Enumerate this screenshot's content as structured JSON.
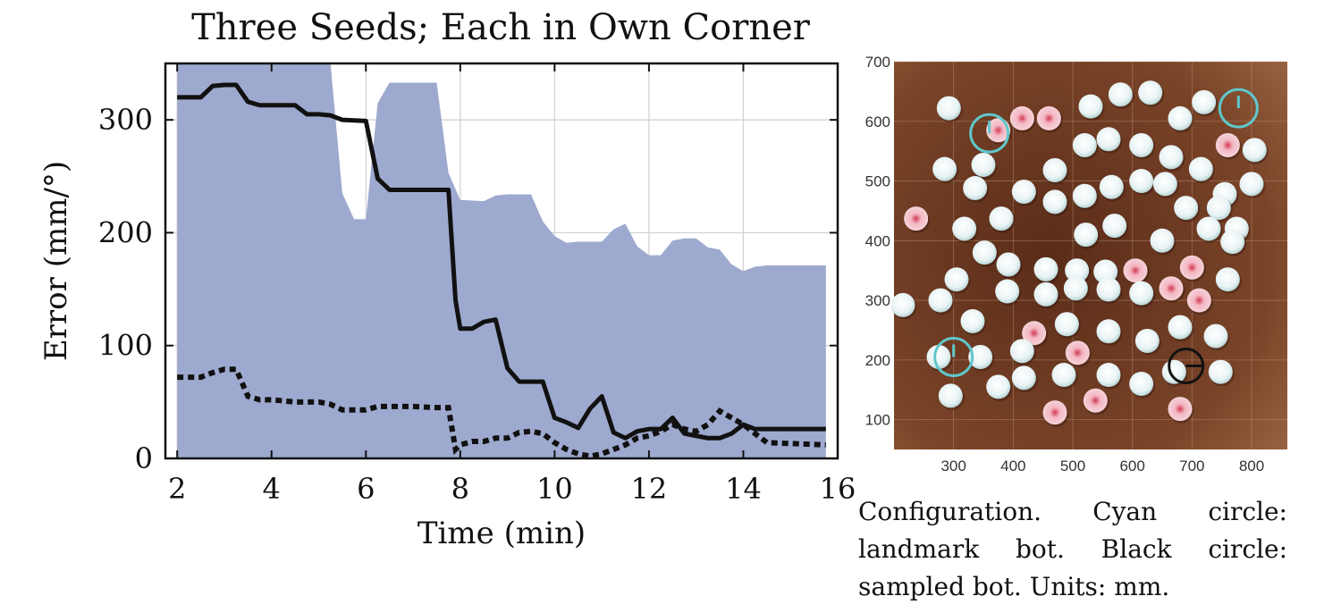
{
  "chart_data": [
    {
      "type": "line",
      "title": "Three Seeds; Each in Own Corner",
      "xlabel": "Time (min)",
      "ylabel": "Error (mm/°)",
      "xlim": [
        1.75,
        16
      ],
      "ylim": [
        0,
        350
      ],
      "xticks": [
        2,
        4,
        6,
        8,
        10,
        12,
        14,
        16
      ],
      "yticks": [
        0,
        100,
        200,
        300
      ],
      "grid": true,
      "colors": {
        "band": "#9ea9cf",
        "solid": "#111111",
        "dotted": "#111111",
        "grid": "#d0d0d0"
      },
      "band": {
        "x": [
          2,
          5.25,
          5.5,
          5.75,
          6,
          6.25,
          6.5,
          7.5,
          7.75,
          8,
          8.5,
          8.75,
          9,
          9.5,
          9.75,
          10,
          10.25,
          10.5,
          11,
          11.25,
          11.5,
          11.75,
          12,
          12.25,
          12.5,
          12.75,
          13,
          13.25,
          13.5,
          13.75,
          14,
          14.25,
          14.5,
          15.75
        ],
        "upper": [
          350,
          350,
          235,
          212,
          212,
          315,
          333,
          333,
          253,
          229,
          228,
          233,
          234,
          234,
          210,
          197,
          191,
          192,
          192,
          203,
          208,
          188,
          180,
          180,
          193,
          195,
          195,
          187,
          185,
          172,
          166,
          170,
          171,
          171
        ],
        "lower": [
          0,
          0,
          0,
          0,
          0,
          0,
          0,
          0,
          0,
          0,
          0,
          0,
          0,
          0,
          0,
          0,
          0,
          0,
          0,
          0,
          0,
          0,
          0,
          0,
          0,
          0,
          0,
          0,
          0,
          0,
          0,
          0,
          0,
          0
        ]
      },
      "series": [
        {
          "style": "solid",
          "x": [
            2,
            2.5,
            2.75,
            3,
            3.25,
            3.5,
            3.75,
            4,
            4.5,
            4.75,
            5,
            5.25,
            5.5,
            6,
            6.25,
            6.5,
            7,
            7.5,
            7.75,
            7.9,
            8,
            8.25,
            8.5,
            8.75,
            9,
            9.25,
            9.5,
            9.75,
            10,
            10.25,
            10.5,
            10.75,
            11,
            11.25,
            11.5,
            11.75,
            12,
            12.25,
            12.5,
            12.75,
            13,
            13.25,
            13.5,
            13.75,
            14,
            14.25,
            15.75
          ],
          "y": [
            320,
            320,
            330,
            331,
            331,
            316,
            313,
            313,
            313,
            305,
            305,
            304,
            300,
            299,
            248,
            238,
            238,
            238,
            238,
            140,
            115,
            115,
            121,
            123,
            80,
            68,
            68,
            68,
            36,
            32,
            27,
            44,
            55,
            23,
            18,
            24,
            26,
            26,
            36,
            22,
            20,
            18,
            18,
            22,
            30,
            26,
            26
          ]
        },
        {
          "style": "dotted",
          "x": [
            2,
            2.5,
            2.75,
            3,
            3.25,
            3.5,
            3.75,
            4,
            4.5,
            4.75,
            5,
            5.25,
            5.5,
            6,
            6.25,
            6.5,
            7,
            7.5,
            7.75,
            7.9,
            8,
            8.25,
            8.5,
            8.75,
            9,
            9.25,
            9.5,
            9.75,
            10,
            10.25,
            10.5,
            10.75,
            11,
            11.25,
            11.5,
            11.75,
            12,
            12.25,
            12.5,
            12.75,
            13,
            13.25,
            13.5,
            13.75,
            14,
            14.25,
            14.5,
            15.75
          ],
          "y": [
            72,
            72,
            76,
            79,
            79,
            55,
            52,
            52,
            50,
            50,
            50,
            48,
            43,
            43,
            46,
            46,
            46,
            45,
            45,
            8,
            12,
            15,
            15,
            18,
            18,
            23,
            24,
            22,
            14,
            8,
            4,
            2,
            4,
            8,
            12,
            18,
            20,
            24,
            30,
            26,
            24,
            30,
            42,
            36,
            30,
            22,
            14,
            12
          ]
        }
      ]
    },
    {
      "type": "scatter",
      "xlim": [
        200,
        860
      ],
      "ylim": [
        50,
        700
      ],
      "xticks": [
        300,
        400,
        500,
        600,
        700,
        800
      ],
      "yticks": [
        100,
        200,
        300,
        400,
        500,
        600,
        700
      ],
      "grid": true,
      "colors": {
        "background": "#6b3a24",
        "bot": "#eef3f4",
        "tinted": "#f4c9d0",
        "landmark": "#5fc8cc",
        "sampled": "#111111"
      },
      "bots": [
        {
          "x": 292,
          "y": 622
        },
        {
          "x": 375,
          "y": 585
        },
        {
          "x": 415,
          "y": 605
        },
        {
          "x": 460,
          "y": 605
        },
        {
          "x": 530,
          "y": 625
        },
        {
          "x": 580,
          "y": 645
        },
        {
          "x": 630,
          "y": 648
        },
        {
          "x": 680,
          "y": 605
        },
        {
          "x": 720,
          "y": 632
        },
        {
          "x": 760,
          "y": 560
        },
        {
          "x": 805,
          "y": 552
        },
        {
          "x": 285,
          "y": 520
        },
        {
          "x": 350,
          "y": 527
        },
        {
          "x": 418,
          "y": 482
        },
        {
          "x": 470,
          "y": 518
        },
        {
          "x": 520,
          "y": 560
        },
        {
          "x": 560,
          "y": 570
        },
        {
          "x": 615,
          "y": 560
        },
        {
          "x": 665,
          "y": 540
        },
        {
          "x": 715,
          "y": 520
        },
        {
          "x": 755,
          "y": 478
        },
        {
          "x": 800,
          "y": 495
        },
        {
          "x": 336,
          "y": 488
        },
        {
          "x": 380,
          "y": 437
        },
        {
          "x": 470,
          "y": 465
        },
        {
          "x": 520,
          "y": 475
        },
        {
          "x": 565,
          "y": 490
        },
        {
          "x": 615,
          "y": 500
        },
        {
          "x": 655,
          "y": 495
        },
        {
          "x": 690,
          "y": 455
        },
        {
          "x": 745,
          "y": 455
        },
        {
          "x": 775,
          "y": 420
        },
        {
          "x": 237,
          "y": 437
        },
        {
          "x": 318,
          "y": 420
        },
        {
          "x": 522,
          "y": 410
        },
        {
          "x": 570,
          "y": 425
        },
        {
          "x": 650,
          "y": 400
        },
        {
          "x": 728,
          "y": 420
        },
        {
          "x": 768,
          "y": 398
        },
        {
          "x": 352,
          "y": 380
        },
        {
          "x": 392,
          "y": 360
        },
        {
          "x": 455,
          "y": 352
        },
        {
          "x": 507,
          "y": 350
        },
        {
          "x": 555,
          "y": 348
        },
        {
          "x": 605,
          "y": 350
        },
        {
          "x": 700,
          "y": 355
        },
        {
          "x": 760,
          "y": 335
        },
        {
          "x": 305,
          "y": 335
        },
        {
          "x": 390,
          "y": 315
        },
        {
          "x": 455,
          "y": 310
        },
        {
          "x": 505,
          "y": 320
        },
        {
          "x": 560,
          "y": 318
        },
        {
          "x": 615,
          "y": 312
        },
        {
          "x": 665,
          "y": 320
        },
        {
          "x": 712,
          "y": 300
        },
        {
          "x": 215,
          "y": 292
        },
        {
          "x": 278,
          "y": 300
        },
        {
          "x": 332,
          "y": 265
        },
        {
          "x": 435,
          "y": 245
        },
        {
          "x": 490,
          "y": 260
        },
        {
          "x": 560,
          "y": 248
        },
        {
          "x": 625,
          "y": 232
        },
        {
          "x": 680,
          "y": 255
        },
        {
          "x": 740,
          "y": 240
        },
        {
          "x": 415,
          "y": 215
        },
        {
          "x": 508,
          "y": 212
        },
        {
          "x": 275,
          "y": 205
        },
        {
          "x": 345,
          "y": 205
        },
        {
          "x": 418,
          "y": 170
        },
        {
          "x": 485,
          "y": 175
        },
        {
          "x": 560,
          "y": 175
        },
        {
          "x": 615,
          "y": 160
        },
        {
          "x": 670,
          "y": 180
        },
        {
          "x": 748,
          "y": 180
        },
        {
          "x": 295,
          "y": 140
        },
        {
          "x": 375,
          "y": 155
        },
        {
          "x": 470,
          "y": 112
        },
        {
          "x": 538,
          "y": 132
        },
        {
          "x": 680,
          "y": 118
        }
      ],
      "tinted_bots": [
        {
          "x": 415,
          "y": 605
        },
        {
          "x": 460,
          "y": 605
        },
        {
          "x": 375,
          "y": 585
        },
        {
          "x": 237,
          "y": 437
        },
        {
          "x": 760,
          "y": 560
        },
        {
          "x": 805,
          "y": 495
        },
        {
          "x": 605,
          "y": 350
        },
        {
          "x": 665,
          "y": 320
        },
        {
          "x": 712,
          "y": 300
        },
        {
          "x": 435,
          "y": 245
        },
        {
          "x": 508,
          "y": 212
        },
        {
          "x": 470,
          "y": 112
        },
        {
          "x": 538,
          "y": 132
        },
        {
          "x": 680,
          "y": 118
        },
        {
          "x": 700,
          "y": 355
        }
      ],
      "landmarks": [
        {
          "x": 360,
          "y": 580
        },
        {
          "x": 778,
          "y": 622
        },
        {
          "x": 300,
          "y": 205
        }
      ],
      "sampled": {
        "x": 690,
        "y": 190
      }
    }
  ],
  "caption": {
    "lines": [
      "Configuration. Cyan circle:",
      "landmark bot. Black circle:",
      "sampled bot. Units: mm."
    ]
  }
}
